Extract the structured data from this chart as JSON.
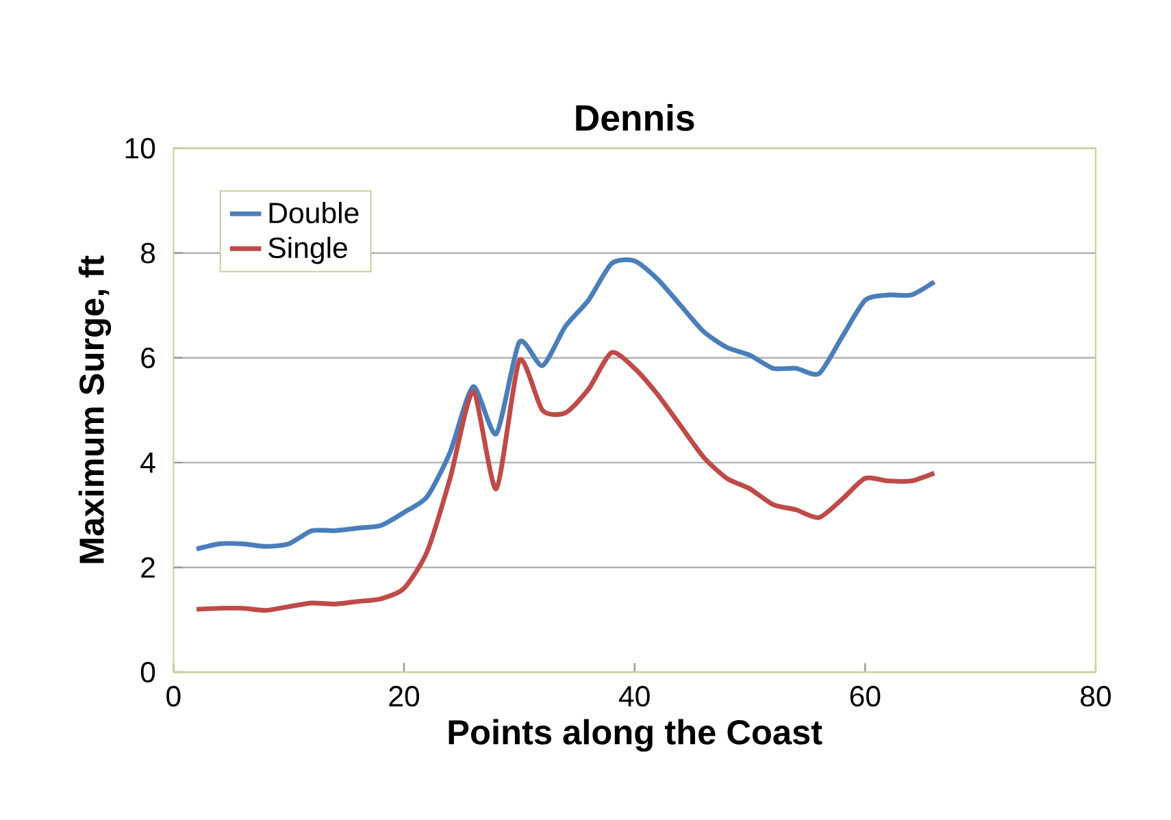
{
  "chart_data": {
    "type": "line",
    "title": "Dennis",
    "xlabel": "Points along the Coast",
    "ylabel": "Maximum Surge, ft",
    "x": [
      2,
      4,
      6,
      8,
      10,
      12,
      14,
      16,
      18,
      20,
      22,
      24,
      26,
      28,
      30,
      32,
      34,
      36,
      38,
      40,
      42,
      44,
      46,
      48,
      50,
      52,
      54,
      56,
      58,
      60,
      62,
      64,
      66
    ],
    "series": [
      {
        "name": "Double",
        "color": "#4a7ebb",
        "values": [
          2.35,
          2.45,
          2.45,
          2.4,
          2.45,
          2.7,
          2.7,
          2.75,
          2.8,
          3.05,
          3.35,
          4.2,
          5.45,
          4.55,
          6.3,
          5.85,
          6.6,
          7.1,
          7.8,
          7.85,
          7.5,
          7.0,
          6.5,
          6.2,
          6.05,
          5.8,
          5.8,
          5.7,
          6.4,
          7.1,
          7.2,
          7.2,
          7.45
        ]
      },
      {
        "name": "Single",
        "color": "#be4b48",
        "values": [
          1.2,
          1.22,
          1.22,
          1.18,
          1.25,
          1.32,
          1.3,
          1.35,
          1.4,
          1.6,
          2.3,
          3.7,
          5.35,
          3.5,
          5.95,
          5.0,
          4.95,
          5.4,
          6.1,
          5.8,
          5.3,
          4.7,
          4.1,
          3.7,
          3.5,
          3.2,
          3.1,
          2.95,
          3.3,
          3.7,
          3.65,
          3.65,
          3.8
        ]
      }
    ],
    "xlim": [
      0,
      80
    ],
    "xticks": [
      0,
      20,
      40,
      60,
      80
    ],
    "ylim": [
      0,
      10
    ],
    "yticks": [
      0,
      2,
      4,
      6,
      8,
      10
    ],
    "grid": "y",
    "legend": "top left",
    "marker": "none",
    "line_style": "solid"
  }
}
